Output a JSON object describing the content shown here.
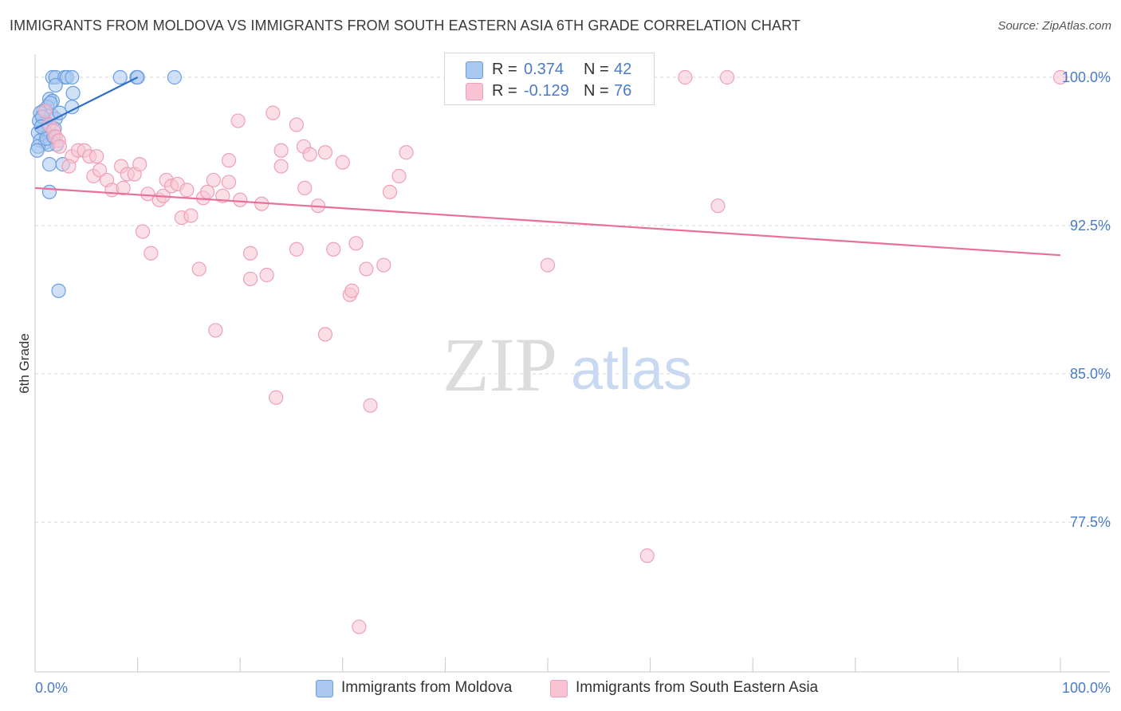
{
  "title": "IMMIGRANTS FROM MOLDOVA VS IMMIGRANTS FROM SOUTH EASTERN ASIA 6TH GRADE CORRELATION CHART",
  "source": "Source: ZipAtlas.com",
  "watermark": {
    "zip": "ZIP",
    "atlas": "atlas"
  },
  "legend": {
    "r_label": "R =",
    "n_label": "N =",
    "rows": [
      {
        "r": "0.374",
        "n": "42",
        "color": "#aac8f0",
        "border": "#6a9ee0"
      },
      {
        "r": "-0.129",
        "n": "76",
        "color": "#f8c4d4",
        "border": "#eea0b8"
      }
    ]
  },
  "bottom_legend": [
    {
      "label": "Immigrants from Moldova",
      "color": "#aac8f0",
      "border": "#6a9ee0"
    },
    {
      "label": "Immigrants from South Eastern Asia",
      "color": "#f8c4d4",
      "border": "#eea0b8"
    }
  ],
  "chart_data": {
    "type": "scatter",
    "title": "IMMIGRANTS FROM MOLDOVA VS IMMIGRANTS FROM SOUTH EASTERN ASIA 6TH GRADE CORRELATION CHART",
    "xlabel": "",
    "ylabel": "6th Grade",
    "xlim": [
      0,
      100
    ],
    "ylim": [
      71.5,
      101.8
    ],
    "x_tick_labels": [
      "0.0%",
      "100.0%"
    ],
    "y_ticks": [
      77.5,
      85.0,
      92.5,
      100.0
    ],
    "y_tick_labels": [
      "77.5%",
      "85.0%",
      "92.5%",
      "100.0%"
    ],
    "grid": "horizontal dashed",
    "legend_position": "top-center",
    "series": [
      {
        "name": "Immigrants from Moldova",
        "color": "#6a9ee0",
        "fill": "#aac8f0",
        "trend": {
          "x": [
            0.0,
            10.0
          ],
          "y": [
            97.4,
            100.0
          ],
          "color": "#2f6fc6"
        },
        "points": [
          [
            1.7,
            100.0
          ],
          [
            2.0,
            100.0
          ],
          [
            2.9,
            100.0
          ],
          [
            3.1,
            100.0
          ],
          [
            3.6,
            100.0
          ],
          [
            8.3,
            100.0
          ],
          [
            9.9,
            100.0
          ],
          [
            10.0,
            100.0
          ],
          [
            13.6,
            100.0
          ],
          [
            2.0,
            99.6
          ],
          [
            3.7,
            99.2
          ],
          [
            1.4,
            98.9
          ],
          [
            1.7,
            98.8
          ],
          [
            1.2,
            98.5
          ],
          [
            0.8,
            98.3
          ],
          [
            3.6,
            98.5
          ],
          [
            0.5,
            98.2
          ],
          [
            1.6,
            98.1
          ],
          [
            2.0,
            97.9
          ],
          [
            1.0,
            97.7
          ],
          [
            0.7,
            97.6
          ],
          [
            0.4,
            97.8
          ],
          [
            1.9,
            97.4
          ],
          [
            0.9,
            97.3
          ],
          [
            0.3,
            97.2
          ],
          [
            1.3,
            97.1
          ],
          [
            0.5,
            96.8
          ],
          [
            1.0,
            96.7
          ],
          [
            2.1,
            96.6
          ],
          [
            1.3,
            96.6
          ],
          [
            0.3,
            96.5
          ],
          [
            1.4,
            95.6
          ],
          [
            2.7,
            95.6
          ],
          [
            1.4,
            94.2
          ],
          [
            2.3,
            89.2
          ],
          [
            0.7,
            98.0
          ],
          [
            1.1,
            96.9
          ],
          [
            0.6,
            97.5
          ],
          [
            2.4,
            98.2
          ],
          [
            1.5,
            98.7
          ],
          [
            0.2,
            96.3
          ],
          [
            1.8,
            97.0
          ]
        ]
      },
      {
        "name": "Immigrants from South Eastern Asia",
        "color": "#eea0b8",
        "fill": "#f8c4d4",
        "trend": {
          "x": [
            0.0,
            100.0
          ],
          "y": [
            94.4,
            91.0
          ],
          "color": "#e8709a"
        },
        "points": [
          [
            63.4,
            100.0
          ],
          [
            67.5,
            100.0
          ],
          [
            100.0,
            100.0
          ],
          [
            1.0,
            98.3
          ],
          [
            1.4,
            97.6
          ],
          [
            1.8,
            97.3
          ],
          [
            2.0,
            97.0
          ],
          [
            2.3,
            96.8
          ],
          [
            2.4,
            96.5
          ],
          [
            19.8,
            97.8
          ],
          [
            23.2,
            98.2
          ],
          [
            25.5,
            97.6
          ],
          [
            3.6,
            96.0
          ],
          [
            4.2,
            96.3
          ],
          [
            4.8,
            96.3
          ],
          [
            5.3,
            96.0
          ],
          [
            3.3,
            95.5
          ],
          [
            24.0,
            96.3
          ],
          [
            26.2,
            96.5
          ],
          [
            26.8,
            96.1
          ],
          [
            28.3,
            96.2
          ],
          [
            30.0,
            95.7
          ],
          [
            36.2,
            96.2
          ],
          [
            18.9,
            95.8
          ],
          [
            24.0,
            95.5
          ],
          [
            5.7,
            95.0
          ],
          [
            6.3,
            95.3
          ],
          [
            7.0,
            94.8
          ],
          [
            7.5,
            94.3
          ],
          [
            8.4,
            95.5
          ],
          [
            9.0,
            95.1
          ],
          [
            9.7,
            95.1
          ],
          [
            10.2,
            95.6
          ],
          [
            11.0,
            94.1
          ],
          [
            12.1,
            93.8
          ],
          [
            12.5,
            94.0
          ],
          [
            12.8,
            94.8
          ],
          [
            13.3,
            94.5
          ],
          [
            13.9,
            94.6
          ],
          [
            14.8,
            94.3
          ],
          [
            16.4,
            93.9
          ],
          [
            16.8,
            94.2
          ],
          [
            17.4,
            94.8
          ],
          [
            18.3,
            94.0
          ],
          [
            18.9,
            94.7
          ],
          [
            20.0,
            93.8
          ],
          [
            22.1,
            93.6
          ],
          [
            26.3,
            94.4
          ],
          [
            27.6,
            93.5
          ],
          [
            34.6,
            94.2
          ],
          [
            35.5,
            95.0
          ],
          [
            66.6,
            93.5
          ],
          [
            14.3,
            92.9
          ],
          [
            15.2,
            93.0
          ],
          [
            10.5,
            92.2
          ],
          [
            11.3,
            91.1
          ],
          [
            16.0,
            90.3
          ],
          [
            21.0,
            91.1
          ],
          [
            21.0,
            89.8
          ],
          [
            22.6,
            90.0
          ],
          [
            25.5,
            91.3
          ],
          [
            29.1,
            91.3
          ],
          [
            31.3,
            91.6
          ],
          [
            32.3,
            90.3
          ],
          [
            30.7,
            89.0
          ],
          [
            30.9,
            89.2
          ],
          [
            34.0,
            90.5
          ],
          [
            50.0,
            90.5
          ],
          [
            17.6,
            87.2
          ],
          [
            28.3,
            87.0
          ],
          [
            23.5,
            83.8
          ],
          [
            32.7,
            83.4
          ],
          [
            59.7,
            75.8
          ],
          [
            31.6,
            72.2
          ],
          [
            6.0,
            96.0
          ],
          [
            8.6,
            94.4
          ]
        ]
      }
    ]
  }
}
